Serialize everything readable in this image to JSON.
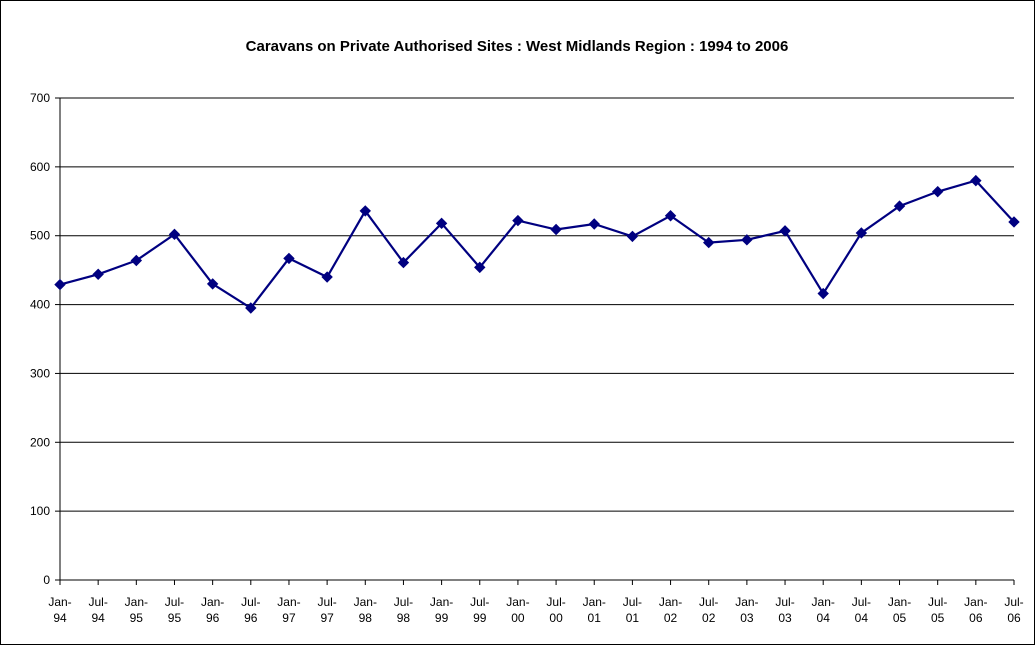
{
  "chart_data": {
    "type": "line",
    "title": "Caravans on Private Authorised Sites : West Midlands Region : 1994 to 2006",
    "xlabel": "",
    "ylabel": "",
    "ylim": [
      0,
      700
    ],
    "yticks": [
      0,
      100,
      200,
      300,
      400,
      500,
      600,
      700
    ],
    "grid": true,
    "legend": "none",
    "categories": [
      [
        "Jan-",
        "94"
      ],
      [
        "Jul-",
        "94"
      ],
      [
        "Jan-",
        "95"
      ],
      [
        "Jul-",
        "95"
      ],
      [
        "Jan-",
        "96"
      ],
      [
        "Jul-",
        "96"
      ],
      [
        "Jan-",
        "97"
      ],
      [
        "Jul-",
        "97"
      ],
      [
        "Jan-",
        "98"
      ],
      [
        "Jul-",
        "98"
      ],
      [
        "Jan-",
        "99"
      ],
      [
        "Jul-",
        "99"
      ],
      [
        "Jan-",
        "00"
      ],
      [
        "Jul-",
        "00"
      ],
      [
        "Jan-",
        "01"
      ],
      [
        "Jul-",
        "01"
      ],
      [
        "Jan-",
        "02"
      ],
      [
        "Jul-",
        "02"
      ],
      [
        "Jan-",
        "03"
      ],
      [
        "Jul-",
        "03"
      ],
      [
        "Jan-",
        "04"
      ],
      [
        "Jul-",
        "04"
      ],
      [
        "Jan-",
        "05"
      ],
      [
        "Jul-",
        "05"
      ],
      [
        "Jan-",
        "06"
      ],
      [
        "Jul-",
        "06"
      ]
    ],
    "series": [
      {
        "values": [
          429,
          444,
          464,
          502,
          430,
          395,
          467,
          440,
          536,
          461,
          518,
          454,
          522,
          509,
          517,
          499,
          529,
          490,
          494,
          507,
          416,
          504,
          543,
          564,
          580,
          520
        ],
        "color": "#000080",
        "marker": "diamond"
      }
    ]
  }
}
